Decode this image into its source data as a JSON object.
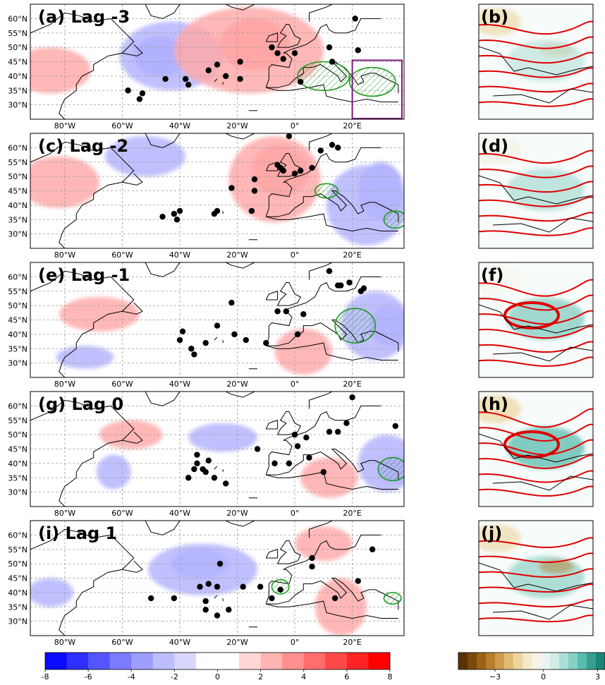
{
  "panels": [
    {
      "label": "(a) Lag -3",
      "side_label": "(b)",
      "box": true,
      "anoms": [
        {
          "v": -5,
          "lon": -47,
          "lat": 47,
          "rx": 9,
          "ry": 7
        },
        {
          "v": -2,
          "lon": -43,
          "lat": 47,
          "rx": 18,
          "ry": 12
        },
        {
          "v": 5,
          "lon": -14,
          "lat": 51,
          "rx": 12,
          "ry": 9
        },
        {
          "v": 2,
          "lon": -16,
          "lat": 49,
          "rx": 26,
          "ry": 15
        },
        {
          "v": 2,
          "lon": -85,
          "lat": 42,
          "rx": 14,
          "ry": 8
        }
      ],
      "points": [
        [
          -58,
          35
        ],
        [
          -53,
          34
        ],
        [
          -54,
          32
        ],
        [
          -45,
          39
        ],
        [
          -38,
          39
        ],
        [
          -37,
          37
        ],
        [
          -30,
          42
        ],
        [
          -27,
          44
        ],
        [
          -24,
          40
        ],
        [
          -19,
          39
        ],
        [
          -19,
          45
        ],
        [
          -8,
          50
        ],
        [
          -6,
          48
        ],
        [
          -4,
          46
        ],
        [
          0,
          48
        ],
        [
          2,
          38
        ],
        [
          12,
          50
        ],
        [
          13,
          45
        ],
        [
          22,
          49
        ],
        [
          21,
          60
        ]
      ],
      "hatch": [
        {
          "lon": 10,
          "lat": 40,
          "rx": 9,
          "ry": 5
        },
        {
          "lon": 27,
          "lat": 38,
          "rx": 8,
          "ry": 5
        }
      ]
    },
    {
      "label": "(c) Lag -2",
      "side_label": "(d)",
      "box": false,
      "anoms": [
        {
          "v": -2,
          "lon": -52,
          "lat": 57,
          "rx": 14,
          "ry": 7
        },
        {
          "v": 4,
          "lon": -5,
          "lat": 52,
          "rx": 10,
          "ry": 9
        },
        {
          "v": 2,
          "lon": -7,
          "lat": 49,
          "rx": 16,
          "ry": 15
        },
        {
          "v": 2,
          "lon": -82,
          "lat": 48,
          "rx": 14,
          "ry": 9
        },
        {
          "v": -3,
          "lon": 30,
          "lat": 45,
          "rx": 8,
          "ry": 10
        },
        {
          "v": -2,
          "lon": 25,
          "lat": 40,
          "rx": 14,
          "ry": 14
        }
      ],
      "points": [
        [
          -46,
          36
        ],
        [
          -42,
          37
        ],
        [
          -40,
          38
        ],
        [
          -41,
          35
        ],
        [
          -27,
          38
        ],
        [
          -28,
          37
        ],
        [
          -22,
          46
        ],
        [
          -15,
          38
        ],
        [
          -14,
          45
        ],
        [
          -14,
          49
        ],
        [
          -6,
          54
        ],
        [
          -5,
          53
        ],
        [
          -4,
          52
        ],
        [
          -2,
          64
        ],
        [
          0,
          51
        ],
        [
          2,
          52
        ],
        [
          6,
          53
        ],
        [
          9,
          59
        ],
        [
          13,
          61
        ],
        [
          15,
          60
        ]
      ],
      "hatch": [
        {
          "lon": 11,
          "lat": 45,
          "rx": 4,
          "ry": 2.5
        },
        {
          "lon": 35,
          "lat": 35,
          "rx": 4,
          "ry": 3
        }
      ]
    },
    {
      "label": "(e) Lag -1",
      "side_label": "(f)",
      "box": false,
      "anoms": [
        {
          "v": -3,
          "lon": 33,
          "lat": 43,
          "rx": 7,
          "ry": 7
        },
        {
          "v": -2,
          "lon": 28,
          "lat": 43,
          "rx": 12,
          "ry": 12
        },
        {
          "v": 2,
          "lon": -68,
          "lat": 47,
          "rx": 14,
          "ry": 6
        },
        {
          "v": 2,
          "lon": 3,
          "lat": 34,
          "rx": 10,
          "ry": 8
        },
        {
          "v": -2,
          "lon": -73,
          "lat": 32,
          "rx": 10,
          "ry": 4
        }
      ],
      "points": [
        [
          -39,
          41
        ],
        [
          -40,
          38
        ],
        [
          -36,
          35
        ],
        [
          -35,
          33
        ],
        [
          -31,
          37
        ],
        [
          -27,
          43
        ],
        [
          -21,
          40
        ],
        [
          -22,
          51
        ],
        [
          -17,
          38
        ],
        [
          -10,
          37
        ],
        [
          -6,
          48
        ],
        [
          -3,
          48
        ],
        [
          1,
          40
        ],
        [
          3,
          47
        ],
        [
          12,
          62
        ],
        [
          15,
          57
        ],
        [
          16,
          57
        ],
        [
          19,
          58
        ],
        [
          23,
          55
        ],
        [
          24,
          56
        ]
      ],
      "hatch": [
        {
          "lon": 21,
          "lat": 43,
          "rx": 7,
          "ry": 6
        }
      ]
    },
    {
      "label": "(g) Lag 0",
      "side_label": "(h)",
      "box": false,
      "anoms": [
        {
          "v": -3,
          "lon": 35,
          "lat": 38,
          "rx": 6,
          "ry": 5
        },
        {
          "v": -2,
          "lon": 32,
          "lat": 40,
          "rx": 10,
          "ry": 10
        },
        {
          "v": -2,
          "lon": -25,
          "lat": 49,
          "rx": 12,
          "ry": 5
        },
        {
          "v": -2,
          "lon": -63,
          "lat": 37,
          "rx": 6,
          "ry": 6
        },
        {
          "v": 2,
          "lon": -57,
          "lat": 50,
          "rx": 11,
          "ry": 5
        },
        {
          "v": 2,
          "lon": 12,
          "lat": 35,
          "rx": 10,
          "ry": 7
        }
      ],
      "points": [
        [
          -34,
          43
        ],
        [
          -34,
          40
        ],
        [
          -35,
          38
        ],
        [
          -37,
          35
        ],
        [
          -32,
          38
        ],
        [
          -31,
          37
        ],
        [
          -30,
          41
        ],
        [
          -28,
          35
        ],
        [
          -24,
          33
        ],
        [
          -13,
          45
        ],
        [
          -7,
          40
        ],
        [
          -2,
          40
        ],
        [
          0,
          50
        ],
        [
          1,
          46
        ],
        [
          4,
          49
        ],
        [
          5,
          42
        ],
        [
          10,
          37
        ],
        [
          12,
          51
        ],
        [
          15,
          51
        ],
        [
          18,
          54
        ],
        [
          35,
          53
        ],
        [
          20,
          63
        ]
      ],
      "hatch": [
        {
          "lon": 34,
          "lat": 38,
          "rx": 5,
          "ry": 4
        }
      ]
    },
    {
      "label": "(i) Lag 1",
      "side_label": "(j)",
      "box": false,
      "anoms": [
        {
          "v": -3,
          "lon": -33,
          "lat": 50,
          "rx": 10,
          "ry": 5
        },
        {
          "v": -2,
          "lon": -32,
          "lat": 48,
          "rx": 19,
          "ry": 9
        },
        {
          "v": 2,
          "lon": 10,
          "lat": 57,
          "rx": 10,
          "ry": 6
        },
        {
          "v": 2,
          "lon": 16,
          "lat": 35,
          "rx": 9,
          "ry": 10
        },
        {
          "v": -2,
          "lon": -85,
          "lat": 40,
          "rx": 8,
          "ry": 5
        }
      ],
      "points": [
        [
          -50,
          38
        ],
        [
          -42,
          38
        ],
        [
          -33,
          42
        ],
        [
          -30,
          43
        ],
        [
          -31,
          37
        ],
        [
          -31,
          34
        ],
        [
          -27,
          42
        ],
        [
          -26,
          50
        ],
        [
          -27,
          32
        ],
        [
          -23,
          34
        ],
        [
          -18,
          42
        ],
        [
          -12,
          42
        ],
        [
          -8,
          38
        ],
        [
          -5,
          41
        ],
        [
          6,
          49
        ],
        [
          6,
          52
        ],
        [
          14,
          38
        ],
        [
          22,
          44
        ],
        [
          27,
          55
        ]
      ],
      "hatch": [
        {
          "lon": -5,
          "lat": 42,
          "rx": 3,
          "ry": 2.5
        },
        {
          "lon": 34,
          "lat": 38,
          "rx": 3,
          "ry": 2
        }
      ]
    }
  ],
  "lon_ticks": [
    "80°W",
    "60°W",
    "40°W",
    "20°W",
    "0°",
    "20°E"
  ],
  "lat_ticks": [
    "60°N",
    "55°N",
    "50°N",
    "45°N",
    "40°N",
    "35°N",
    "30°N"
  ],
  "colorbar_main": {
    "ticks": [
      "-8",
      "-6",
      "-4",
      "-2",
      "0",
      "2",
      "4",
      "6",
      "8"
    ],
    "colors": [
      "#0a0aff",
      "#2e2eff",
      "#5555ff",
      "#7b7bff",
      "#9e9eff",
      "#bdbdff",
      "#d8d8ff",
      "#ffffff",
      "#ffffff",
      "#ffd6d6",
      "#ffb3b3",
      "#ff9090",
      "#ff6d6d",
      "#ff4848",
      "#ff2424",
      "#ff0000"
    ]
  },
  "colorbar_side": {
    "ticks": [
      "−3",
      "0",
      "3"
    ],
    "colors": [
      "#5a3305",
      "#7a4a0c",
      "#9a6318",
      "#b87e2c",
      "#d09d4c",
      "#e0bc75",
      "#ecd59f",
      "#f5e8c7",
      "#f7f2e8",
      "#eaf5f3",
      "#cfece7",
      "#ace0d7",
      "#84d0c4",
      "#59bbad",
      "#35a091",
      "#1a8577"
    ]
  },
  "colors": {
    "negative": "#4444ff",
    "positive": "#ff3030",
    "points": "#000000",
    "hatch": "#1e9b1e",
    "box": "#7a1a7a",
    "contours": "#e00000"
  }
}
